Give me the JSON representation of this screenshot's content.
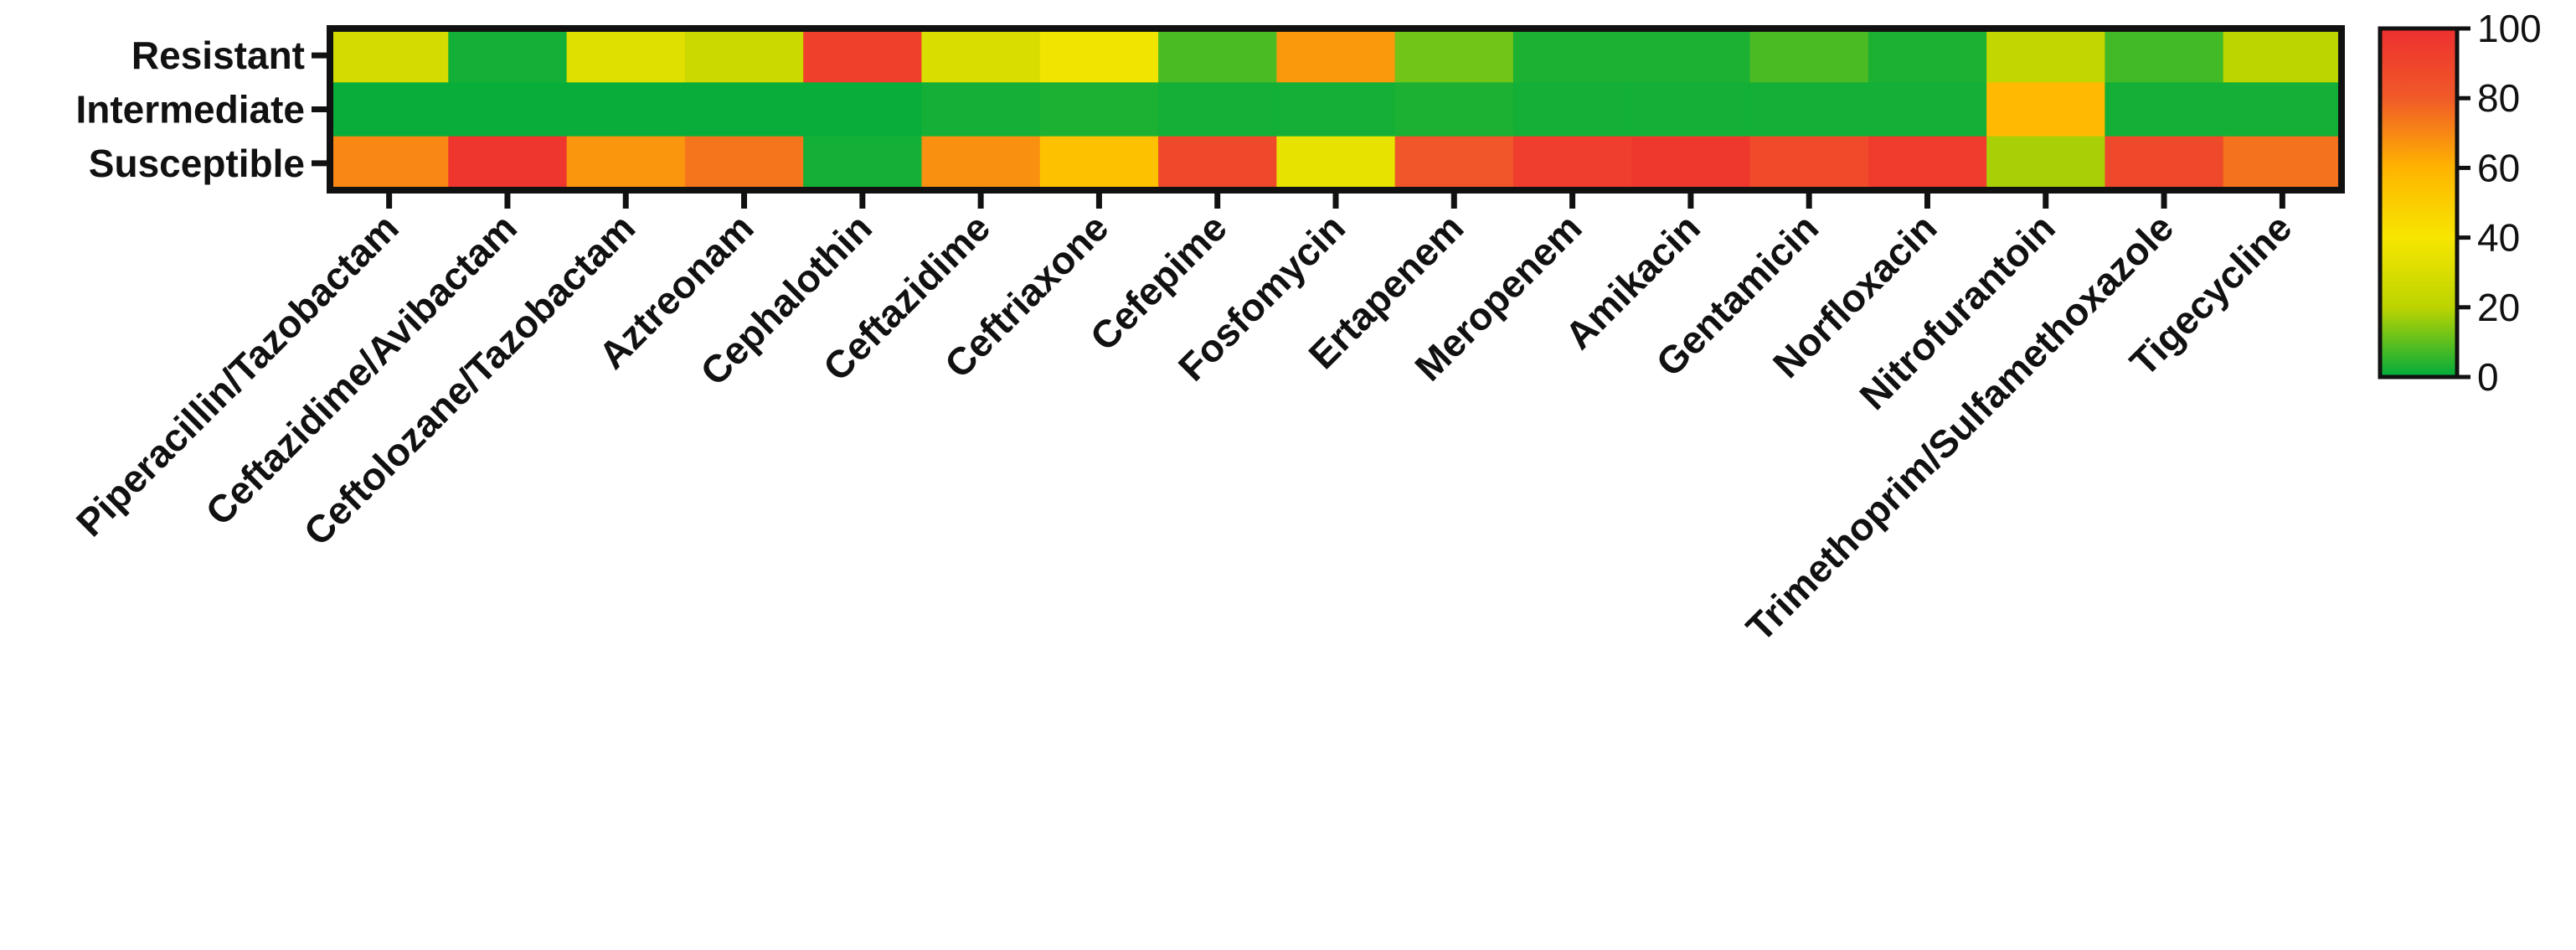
{
  "chart_data": {
    "type": "heatmap",
    "title": "",
    "xlabel": "",
    "ylabel": "",
    "rows": [
      "Resistant",
      "Intermediate",
      "Susceptible"
    ],
    "columns": [
      "Piperacillin/Tazobactam",
      "Ceftazidime/Avibactam",
      "Ceftolozane/Tazobactam",
      "Aztreonam",
      "Cephalothin",
      "Ceftazidime",
      "Ceftriaxone",
      "Cefepime",
      "Fosfomycin",
      "Ertapenem",
      "Meropenem",
      "Amikacin",
      "Gentamicin",
      "Norfloxacin",
      "Nitrofurantoin",
      "Trimethoprim/Sulfamethoxazole",
      "Tigecycline"
    ],
    "values": [
      [
        28,
        2,
        32,
        25,
        92,
        30,
        38,
        8,
        66,
        12,
        3,
        3,
        8,
        3,
        22,
        7,
        20
      ],
      [
        1,
        1,
        1,
        1,
        1,
        2,
        3,
        2,
        2,
        3,
        2,
        2,
        2,
        2,
        58,
        2,
        2
      ],
      [
        70,
        97,
        67,
        74,
        2,
        68,
        55,
        88,
        35,
        82,
        93,
        96,
        87,
        94,
        18,
        88,
        75
      ]
    ],
    "colorbar": {
      "min": 0,
      "max": 100,
      "ticks": [
        "0",
        "20",
        "40",
        "60",
        "80",
        "100"
      ],
      "colors": [
        "#00ab3c",
        "#bcd400",
        "#f7e600",
        "#ffb400",
        "#f05a28",
        "#ee2f2f"
      ]
    },
    "legend_position": "right",
    "grid": false
  }
}
